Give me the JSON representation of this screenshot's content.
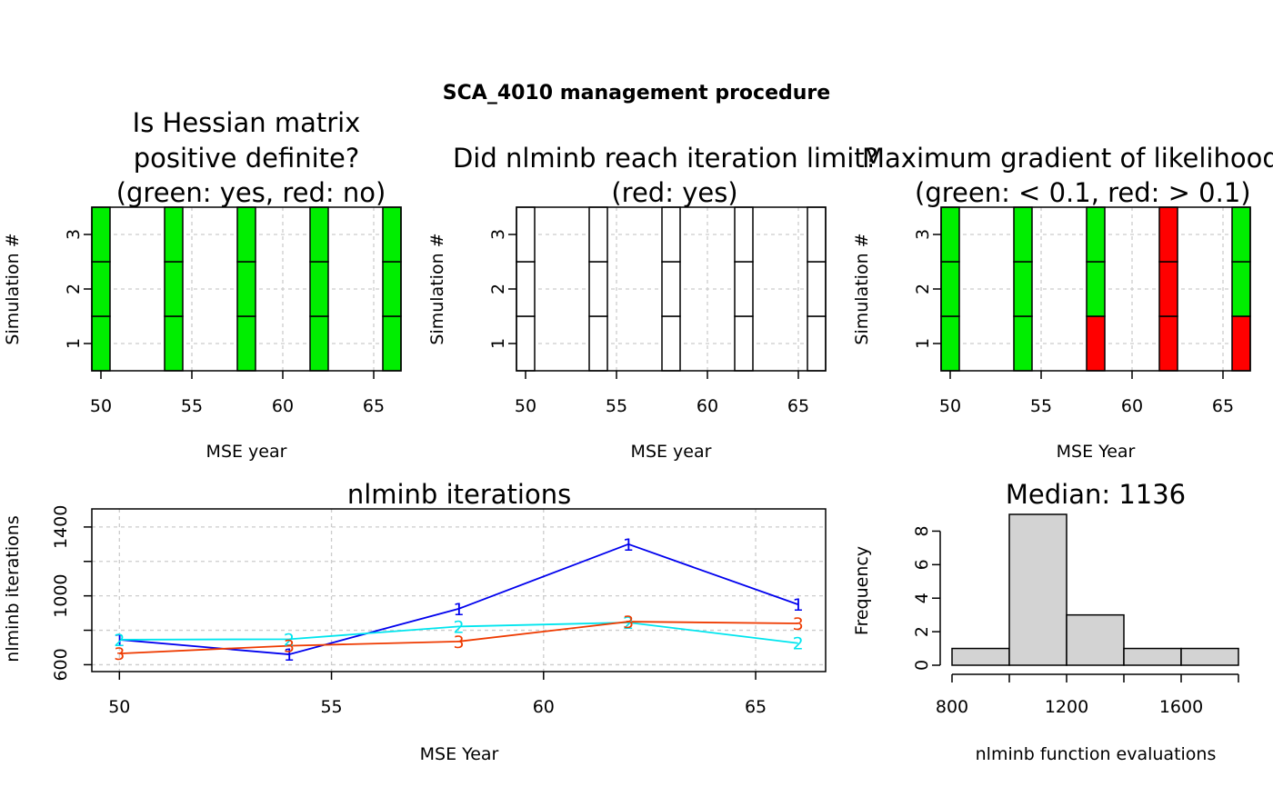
{
  "title": "SCA_4010 management procedure",
  "colors": {
    "green": "#00ee00",
    "red": "#ff0000",
    "none": "#ffffff",
    "hist_fill": "#d3d3d3",
    "grid": "#cccccc",
    "series_1": "#0000ee",
    "series_2": "#00e5ee",
    "series_3": "#ee3a00"
  },
  "chart_data": [
    {
      "type": "heatmap",
      "title_lines": [
        "Is Hessian matrix",
        "positive definite?",
        "(green: yes, red: no)"
      ],
      "xlabel": "MSE year",
      "ylabel": "Simulation #",
      "x_ticks": [
        50,
        55,
        60,
        65
      ],
      "y_ticks": [
        1,
        2,
        3
      ],
      "xlim": [
        49.5,
        66.5
      ],
      "ylim": [
        0.5,
        3.5
      ],
      "years": [
        50,
        54,
        58,
        62,
        66
      ],
      "simulations": [
        1,
        2,
        3
      ],
      "cells": [
        [
          "green",
          "green",
          "green",
          "green",
          "green"
        ],
        [
          "green",
          "green",
          "green",
          "green",
          "green"
        ],
        [
          "green",
          "green",
          "green",
          "green",
          "green"
        ]
      ]
    },
    {
      "type": "heatmap",
      "title_lines": [
        "Did nlminb reach iteration limit?",
        "(red: yes)"
      ],
      "xlabel": "MSE year",
      "ylabel": "Simulation #",
      "x_ticks": [
        50,
        55,
        60,
        65
      ],
      "y_ticks": [
        1,
        2,
        3
      ],
      "xlim": [
        49.5,
        66.5
      ],
      "ylim": [
        0.5,
        3.5
      ],
      "years": [
        50,
        54,
        58,
        62,
        66
      ],
      "simulations": [
        1,
        2,
        3
      ],
      "cells": [
        [
          "none",
          "none",
          "none",
          "none",
          "none"
        ],
        [
          "none",
          "none",
          "none",
          "none",
          "none"
        ],
        [
          "none",
          "none",
          "none",
          "none",
          "none"
        ]
      ]
    },
    {
      "type": "heatmap",
      "title_lines": [
        "Maximum gradient of likelihood",
        "(green: < 0.1, red: > 0.1)"
      ],
      "xlabel": "MSE Year",
      "ylabel": "Simulation #",
      "x_ticks": [
        50,
        55,
        60,
        65
      ],
      "y_ticks": [
        1,
        2,
        3
      ],
      "xlim": [
        49.5,
        66.5
      ],
      "ylim": [
        0.5,
        3.5
      ],
      "years": [
        50,
        54,
        58,
        62,
        66
      ],
      "simulations": [
        1,
        2,
        3
      ],
      "cells": [
        [
          "green",
          "green",
          "red",
          "red",
          "red"
        ],
        [
          "green",
          "green",
          "green",
          "red",
          "green"
        ],
        [
          "green",
          "green",
          "green",
          "red",
          "green"
        ]
      ]
    },
    {
      "type": "line",
      "title": "nlminb iterations",
      "xlabel": "MSE Year",
      "ylabel": "nlminb iterations",
      "x_ticks": [
        50,
        55,
        60,
        65
      ],
      "y_ticks": [
        600,
        1000,
        1400
      ],
      "xlim": [
        49.35,
        66.65
      ],
      "ylim": [
        560,
        1505
      ],
      "x": [
        50,
        54,
        58,
        62,
        66
      ],
      "series": [
        {
          "label": "1",
          "color": "#0000ee",
          "values": [
            745,
            660,
            925,
            1300,
            950
          ]
        },
        {
          "label": "2",
          "color": "#00e5ee",
          "values": [
            745,
            748,
            822,
            845,
            725
          ]
        },
        {
          "label": "3",
          "color": "#ee3a00",
          "values": [
            665,
            710,
            735,
            850,
            840
          ]
        }
      ]
    },
    {
      "type": "bar",
      "subtype": "histogram",
      "title": "Median: 1136",
      "xlabel": "nlminb function evaluations",
      "ylabel": "Frequency",
      "x_ticks": [
        800,
        1200,
        1600
      ],
      "y_ticks": [
        0,
        2,
        4,
        6,
        8
      ],
      "bins": [
        [
          800,
          1000
        ],
        [
          1000,
          1200
        ],
        [
          1200,
          1400
        ],
        [
          1400,
          1600
        ],
        [
          1600,
          1800
        ]
      ],
      "values": [
        1,
        9,
        3,
        1,
        1
      ],
      "xlim": [
        800,
        1800
      ],
      "ylim": [
        0,
        9
      ]
    }
  ]
}
